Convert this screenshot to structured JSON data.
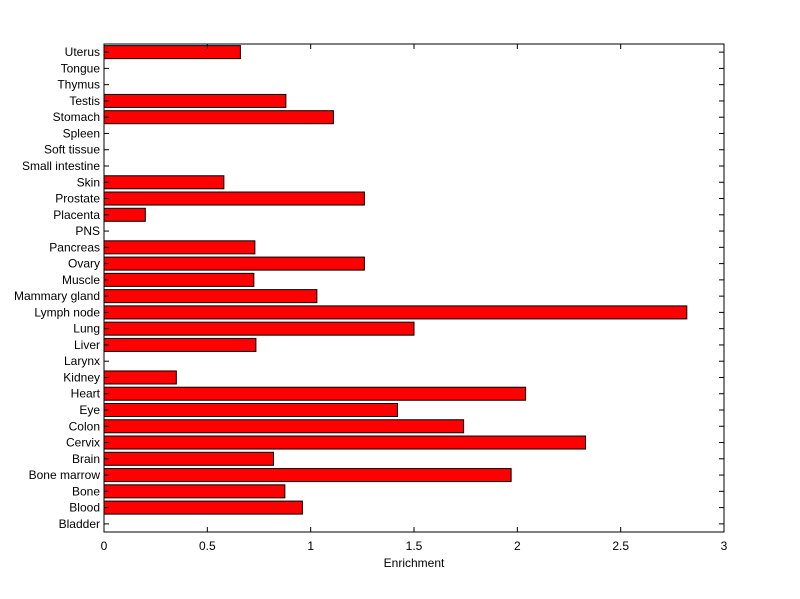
{
  "chart_data": {
    "type": "bar",
    "orientation": "horizontal",
    "title": "",
    "xlabel": "Enrichment",
    "ylabel": "",
    "xlim": [
      0,
      3
    ],
    "xticks": [
      0,
      0.5,
      1,
      1.5,
      2,
      2.5,
      3
    ],
    "xtick_labels": [
      "0",
      "0.5",
      "1",
      "1.5",
      "2",
      "2.5",
      "3"
    ],
    "grid": false,
    "legend": "none",
    "bar_color": "#ff0000",
    "bar_edge_color": "#000000",
    "categories": [
      "Uterus",
      "Tongue",
      "Thymus",
      "Testis",
      "Stomach",
      "Spleen",
      "Soft tissue",
      "Small intestine",
      "Skin",
      "Prostate",
      "Placenta",
      "PNS",
      "Pancreas",
      "Ovary",
      "Muscle",
      "Mammary gland",
      "Lymph node",
      "Lung",
      "Liver",
      "Larynx",
      "Kidney",
      "Heart",
      "Eye",
      "Colon",
      "Cervix",
      "Brain",
      "Bone marrow",
      "Bone",
      "Blood",
      "Bladder"
    ],
    "values": [
      0.66,
      0,
      0,
      0.88,
      1.11,
      0,
      0,
      0,
      0.58,
      1.26,
      0.2,
      0,
      0.73,
      1.26,
      0.725,
      1.03,
      2.82,
      1.5,
      0.735,
      0,
      0.35,
      2.04,
      1.42,
      1.74,
      2.33,
      0.82,
      1.97,
      0.875,
      0.96,
      0
    ]
  }
}
